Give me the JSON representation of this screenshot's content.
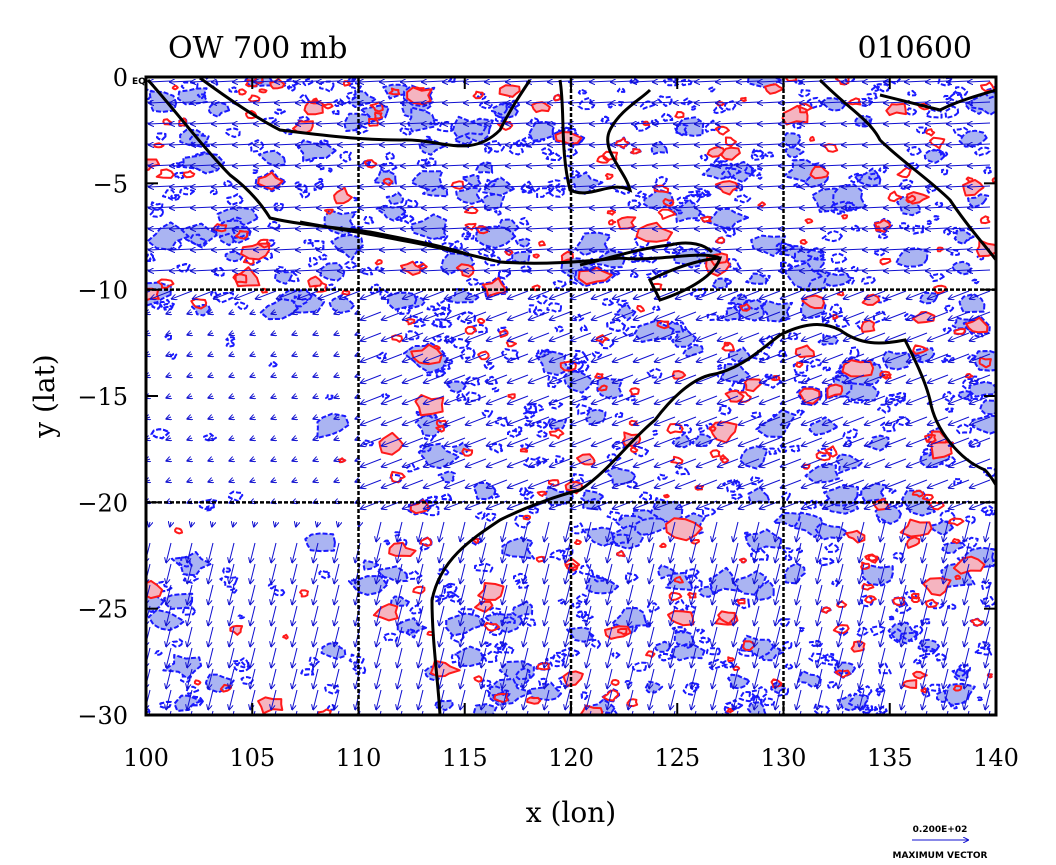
{
  "title_left": "OW 700 mb",
  "title_right": "010600",
  "corner_label": "EQ",
  "colors": {
    "negative_contour": "#1a1aff",
    "negative_fill": "#aab4f2",
    "positive_contour": "#ff1a1a",
    "positive_fill": "#f5b4c0",
    "vector": "#1010d0",
    "coastline": "#000000",
    "grid": "#000000"
  },
  "axes": {
    "xlabel": "x (lon)",
    "ylabel": "y (lat)",
    "xlim": [
      100,
      140
    ],
    "ylim": [
      -30,
      0
    ],
    "x_ticks": [
      100,
      105,
      110,
      115,
      120,
      125,
      130,
      135,
      140
    ],
    "y_ticks": [
      0,
      -5,
      -10,
      -15,
      -20,
      -25,
      -30
    ],
    "x_tick_labels": [
      "100",
      "105",
      "110",
      "115",
      "120",
      "125",
      "130",
      "135",
      "140"
    ],
    "y_tick_labels": [
      "0",
      "−5",
      "−10",
      "−15",
      "−20",
      "−25",
      "−30"
    ],
    "grid_lon": [
      110,
      120,
      130
    ],
    "grid_lat": [
      -10,
      -20
    ]
  },
  "vector_legend": {
    "value": "0.200E+02",
    "label": "MAXIMUM  VECTOR"
  }
}
